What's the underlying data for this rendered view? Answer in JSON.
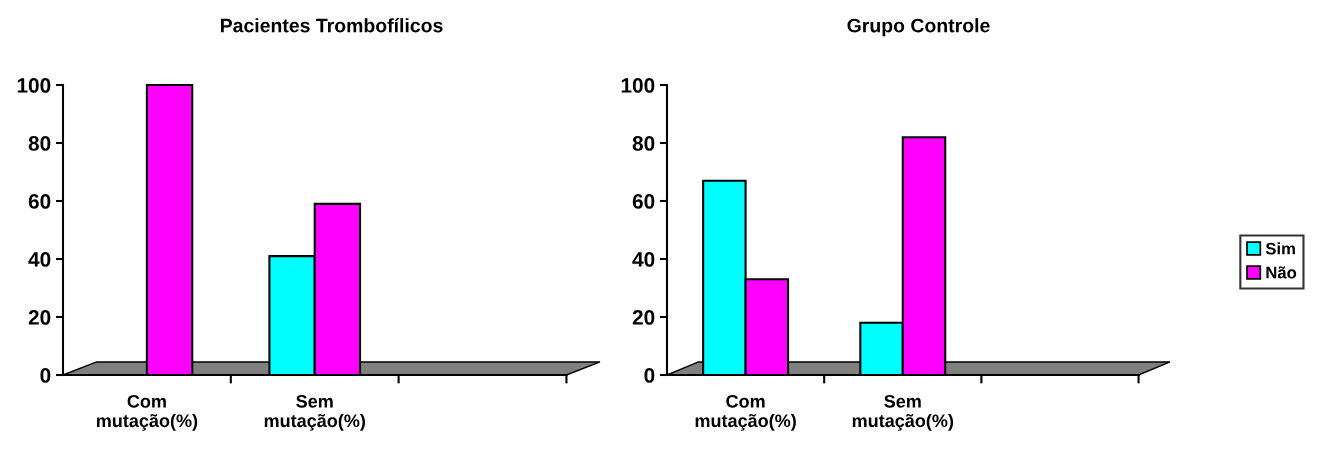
{
  "chart_data": [
    {
      "type": "bar",
      "title": "Pacientes Trombofílicos",
      "categories": [
        "Com mutação(%)",
        "Sem mutação(%)",
        null
      ],
      "ylim": [
        0,
        100
      ],
      "yticks": [
        0,
        20,
        40,
        60,
        80,
        100
      ],
      "grid": false,
      "series": [
        {
          "color": "#00ffff",
          "values": [
            null,
            41,
            null
          ]
        },
        {
          "color": "#ff00ff",
          "values": [
            100,
            59,
            null
          ]
        }
      ]
    },
    {
      "type": "bar",
      "title": "Grupo Controle",
      "categories": [
        "Com mutação(%)",
        "Sem mutação(%)",
        null
      ],
      "ylim": [
        0,
        100
      ],
      "yticks": [
        0,
        20,
        40,
        60,
        80,
        100
      ],
      "grid": false,
      "legend": "right",
      "series": [
        {
          "name": "Sim",
          "color": "#00ffff",
          "values": [
            67,
            18,
            null
          ]
        },
        {
          "name": "Não",
          "color": "#ff00ff",
          "values": [
            33,
            82,
            null
          ]
        }
      ]
    }
  ]
}
